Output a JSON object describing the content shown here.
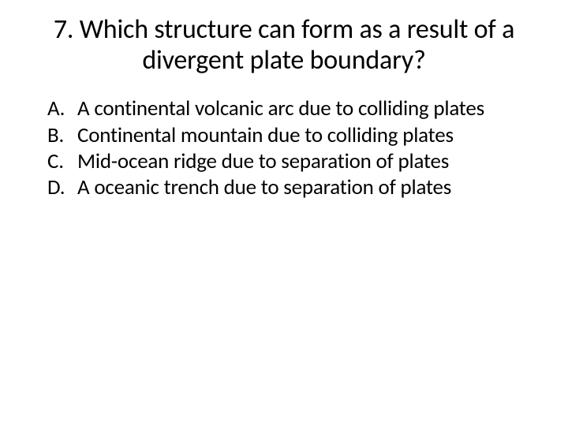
{
  "question": {
    "number": "7.",
    "text": "Which structure can form as a result of a divergent plate boundary?",
    "full_title": "7. Which structure can form as a result of a divergent plate boundary?"
  },
  "options": [
    {
      "letter": "A.",
      "text": "A continental volcanic arc due to colliding plates"
    },
    {
      "letter": "B.",
      "text": "Continental mountain due to colliding plates"
    },
    {
      "letter": "C.",
      "text": "Mid-ocean ridge due to separation of plates"
    },
    {
      "letter": "D.",
      "text": "A oceanic trench due to separation of plates"
    }
  ],
  "styling": {
    "background_color": "#ffffff",
    "text_color": "#000000",
    "title_fontsize": 34,
    "option_fontsize": 27,
    "font_family": "Calibri"
  }
}
